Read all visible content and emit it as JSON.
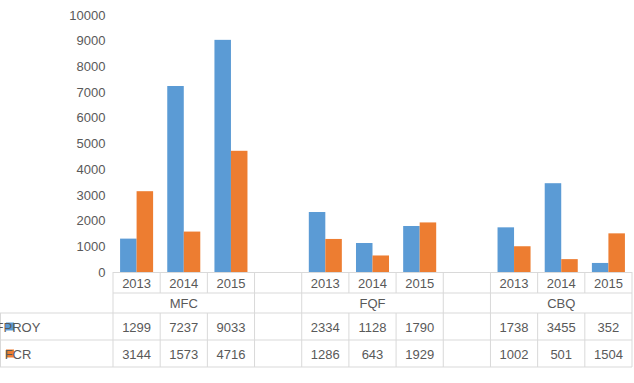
{
  "chart_data": {
    "type": "bar",
    "categories": [
      "2013",
      "2014",
      "2015",
      "2013",
      "2014",
      "2015",
      "2013",
      "2014",
      "2015"
    ],
    "groups": [
      "MFC",
      "FQF",
      "CBQ"
    ],
    "series": [
      {
        "name": "FPROY",
        "color": "#5b9bd5",
        "values": [
          1299,
          7237,
          9033,
          2334,
          1128,
          1790,
          1738,
          3455,
          352
        ]
      },
      {
        "name": "FCR",
        "color": "#ed7d31",
        "values": [
          3144,
          1573,
          4716,
          1286,
          643,
          1929,
          1002,
          501,
          1504
        ]
      }
    ],
    "ylim": [
      0,
      10000
    ],
    "yticks": [
      0,
      1000,
      2000,
      3000,
      4000,
      5000,
      6000,
      7000,
      8000,
      9000,
      10000
    ],
    "grid": false
  }
}
